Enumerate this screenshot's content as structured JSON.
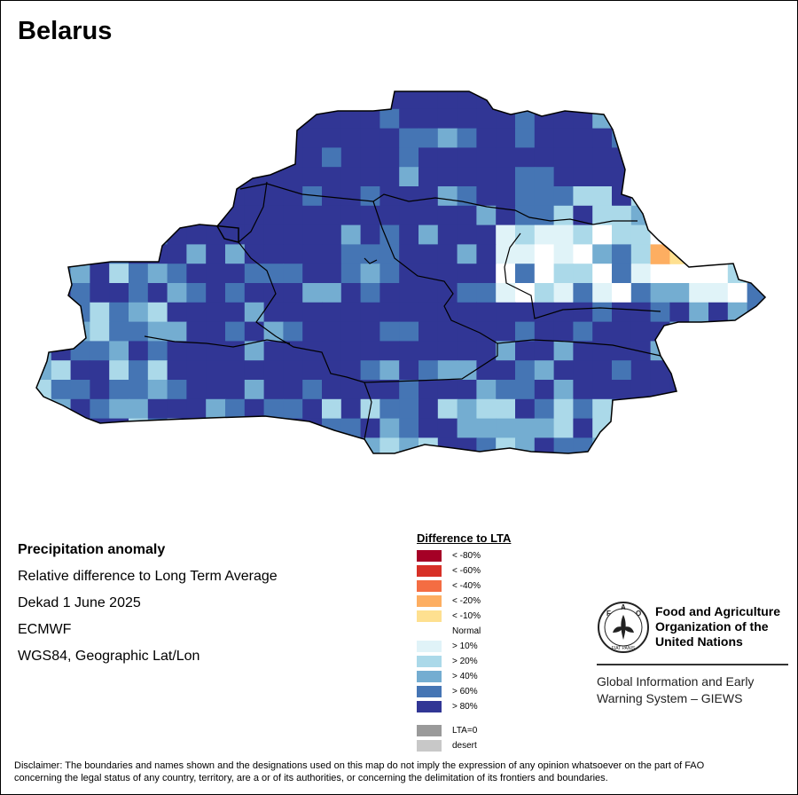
{
  "title": "Belarus",
  "info": {
    "heading": "Precipitation anomaly",
    "line1": "Relative difference to Long Term Average",
    "line2": "Dekad 1 June 2025",
    "line3": "ECMWF",
    "line4": "WGS84, Geographic Lat/Lon"
  },
  "legend": {
    "title": "Difference to LTA",
    "items": [
      {
        "label": "< -80%",
        "color": "#a50026"
      },
      {
        "label": "< -60%",
        "color": "#d73027"
      },
      {
        "label": "< -40%",
        "color": "#f46d43"
      },
      {
        "label": "< -20%",
        "color": "#fdae61"
      },
      {
        "label": "< -10%",
        "color": "#fee090"
      },
      {
        "label": "Normal",
        "color": "#ffffff"
      },
      {
        "label": "> 10%",
        "color": "#e0f3f8"
      },
      {
        "label": "> 20%",
        "color": "#abd9e9"
      },
      {
        "label": "> 40%",
        "color": "#74add1"
      },
      {
        "label": "> 60%",
        "color": "#4575b4"
      },
      {
        "label": "> 80%",
        "color": "#313695"
      },
      {
        "label": "LTA=0",
        "color": "#9a9a9a"
      },
      {
        "label": "desert",
        "color": "#c8c8c8"
      }
    ]
  },
  "fao": {
    "name_line1": "Food and Agriculture",
    "name_line2": "Organization of the",
    "name_line3": "United Nations",
    "giews_line1": "Global Information and Early",
    "giews_line2": "Warning System – GIEWS",
    "logo_letters": "FAO",
    "logo_motto": "FIAT PANIS"
  },
  "disclaimer_line1": "Disclaimer: The boundaries and names shown and the designations used on this map do not imply the expression of any opinion whatsoever on the part of FAO",
  "disclaimer_line2": "concerning the legal status of any country, territory, are a or of its authorities, or concerning the delimitation of its frontiers and boundaries."
}
